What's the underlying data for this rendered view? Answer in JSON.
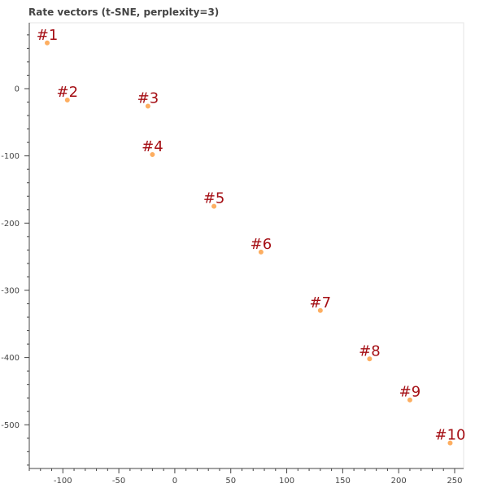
{
  "chart_data": {
    "type": "scatter",
    "title": "Rate vectors (t-SNE, perplexity=3)",
    "xlabel": "",
    "ylabel": "",
    "xlim": [
      -130,
      258
    ],
    "ylim": [
      -565,
      98
    ],
    "xticks": [
      -100,
      -50,
      0,
      50,
      100,
      150,
      200,
      250
    ],
    "yticks": [
      0,
      -100,
      -200,
      -300,
      -400,
      -500
    ],
    "grid": false,
    "marker_color": "#fdae61",
    "label_color": "#a50f15",
    "border_color": "#e5e5e5",
    "axis_color": "#444444",
    "points": [
      {
        "label": "#1",
        "x": -114,
        "y": 68
      },
      {
        "label": "#2",
        "x": -96,
        "y": -17
      },
      {
        "label": "#3",
        "x": -24,
        "y": -26
      },
      {
        "label": "#4",
        "x": -20,
        "y": -98
      },
      {
        "label": "#5",
        "x": 35,
        "y": -175
      },
      {
        "label": "#6",
        "x": 77,
        "y": -243
      },
      {
        "label": "#7",
        "x": 130,
        "y": -330
      },
      {
        "label": "#8",
        "x": 174,
        "y": -402
      },
      {
        "label": "#9",
        "x": 210,
        "y": -463
      },
      {
        "label": "#10",
        "x": 246,
        "y": -527
      }
    ]
  }
}
